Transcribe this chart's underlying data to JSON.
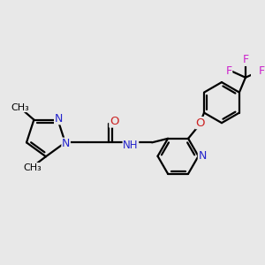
{
  "bg_color": "#e8e8e8",
  "bond_color": "#000000",
  "N_color": "#2222cc",
  "O_color": "#cc2222",
  "F_color": "#cc22cc",
  "line_width": 1.6,
  "font_size_atom": 8.5,
  "figsize": [
    3.0,
    3.0
  ],
  "dpi": 100,
  "xlim": [
    0.0,
    1.0
  ],
  "ylim": [
    0.05,
    1.05
  ]
}
